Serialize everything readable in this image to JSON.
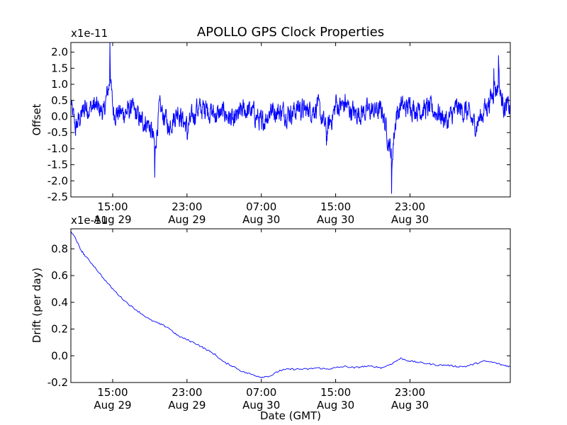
{
  "chart_data": [
    {
      "type": "line",
      "title": "APOLLO GPS Clock Properties",
      "ylabel": "Offset",
      "xlabel": "",
      "y_multiplier": "x1e-11",
      "xlim_hours": [
        10.5,
        57.8
      ],
      "ylim": [
        -2.5,
        2.3
      ],
      "yticks": [
        "2.0",
        "1.5",
        "1.0",
        "0.5",
        "0.0",
        "-0.5",
        "-1.0",
        "-1.5",
        "-2.0",
        "-2.5"
      ],
      "xticks": [
        {
          "time": "15:00",
          "date": "Aug 29",
          "hours": 15
        },
        {
          "time": "23:00",
          "date": "Aug 29",
          "hours": 23
        },
        {
          "time": "07:00",
          "date": "Aug 30",
          "hours": 31
        },
        {
          "time": "15:00",
          "date": "Aug 30",
          "hours": 39
        },
        {
          "time": "23:00",
          "date": "Aug 30",
          "hours": 47
        }
      ],
      "grid": false,
      "color": "#0000ff",
      "series_description_points": [
        [
          10.5,
          0.4
        ],
        [
          11.0,
          -0.6
        ],
        [
          12.0,
          0.5
        ],
        [
          13.0,
          0.6
        ],
        [
          14.0,
          0.3
        ],
        [
          14.7,
          2.3
        ],
        [
          15.0,
          0.3
        ],
        [
          16.0,
          0.2
        ],
        [
          17.0,
          0.4
        ],
        [
          18.0,
          -0.2
        ],
        [
          19.0,
          -0.5
        ],
        [
          19.5,
          -1.9
        ],
        [
          20.0,
          0.5
        ],
        [
          21.0,
          -0.5
        ],
        [
          22.0,
          0.3
        ],
        [
          23.0,
          -0.7
        ],
        [
          24.0,
          0.4
        ],
        [
          25.0,
          0.5
        ],
        [
          26.0,
          0.1
        ],
        [
          27.0,
          0.2
        ],
        [
          28.0,
          -0.3
        ],
        [
          29.0,
          0.4
        ],
        [
          30.0,
          0.3
        ],
        [
          31.0,
          -0.4
        ],
        [
          32.0,
          0.4
        ],
        [
          33.0,
          0.3
        ],
        [
          34.0,
          0.2
        ],
        [
          35.0,
          0.5
        ],
        [
          36.0,
          0.3
        ],
        [
          37.0,
          0.6
        ],
        [
          38.0,
          -0.9
        ],
        [
          39.0,
          0.6
        ],
        [
          40.0,
          0.7
        ],
        [
          41.0,
          0.2
        ],
        [
          42.0,
          0.3
        ],
        [
          43.0,
          0.4
        ],
        [
          44.0,
          0.3
        ],
        [
          45.0,
          -2.4
        ],
        [
          45.5,
          0.1
        ],
        [
          46.0,
          0.5
        ],
        [
          47.0,
          0.6
        ],
        [
          48.0,
          0.4
        ],
        [
          49.0,
          0.5
        ],
        [
          50.0,
          0.2
        ],
        [
          51.0,
          -0.3
        ],
        [
          52.0,
          0.5
        ],
        [
          53.0,
          0.3
        ],
        [
          54.0,
          -0.6
        ],
        [
          55.0,
          0.4
        ],
        [
          56.0,
          1.5
        ],
        [
          56.5,
          1.9
        ],
        [
          57.0,
          0.6
        ],
        [
          57.8,
          0.5
        ]
      ],
      "noise_amplitude": 0.6,
      "n_samples": 1600
    },
    {
      "type": "line",
      "title": "",
      "ylabel": "Drift (per day)",
      "xlabel": "Date (GMT)",
      "y_multiplier": "x1e-11",
      "xlim_hours": [
        10.5,
        57.8
      ],
      "ylim": [
        -0.2,
        0.95
      ],
      "yticks": [
        "0.8",
        "0.6",
        "0.4",
        "0.2",
        "0.0",
        "-0.2"
      ],
      "xticks": [
        {
          "time": "15:00",
          "date": "Aug 29",
          "hours": 15
        },
        {
          "time": "23:00",
          "date": "Aug 29",
          "hours": 23
        },
        {
          "time": "07:00",
          "date": "Aug 30",
          "hours": 31
        },
        {
          "time": "15:00",
          "date": "Aug 30",
          "hours": 39
        },
        {
          "time": "23:00",
          "date": "Aug 30",
          "hours": 47
        }
      ],
      "grid": false,
      "color": "#0000ff",
      "points": [
        [
          10.5,
          0.93
        ],
        [
          11.0,
          0.88
        ],
        [
          11.5,
          0.8
        ],
        [
          12.0,
          0.75
        ],
        [
          13.0,
          0.67
        ],
        [
          14.0,
          0.58
        ],
        [
          15.0,
          0.5
        ],
        [
          16.0,
          0.43
        ],
        [
          17.0,
          0.37
        ],
        [
          18.0,
          0.32
        ],
        [
          19.0,
          0.27
        ],
        [
          20.0,
          0.24
        ],
        [
          21.0,
          0.21
        ],
        [
          22.0,
          0.15
        ],
        [
          23.0,
          0.12
        ],
        [
          24.0,
          0.09
        ],
        [
          25.0,
          0.05
        ],
        [
          26.0,
          0.01
        ],
        [
          27.0,
          -0.05
        ],
        [
          28.0,
          -0.08
        ],
        [
          29.0,
          -0.12
        ],
        [
          30.0,
          -0.14
        ],
        [
          31.0,
          -0.16
        ],
        [
          32.0,
          -0.15
        ],
        [
          33.0,
          -0.11
        ],
        [
          34.0,
          -0.1
        ],
        [
          35.0,
          -0.1
        ],
        [
          36.0,
          -0.1
        ],
        [
          37.0,
          -0.09
        ],
        [
          38.0,
          -0.1
        ],
        [
          39.0,
          -0.09
        ],
        [
          40.0,
          -0.08
        ],
        [
          41.0,
          -0.09
        ],
        [
          42.0,
          -0.08
        ],
        [
          43.0,
          -0.08
        ],
        [
          44.0,
          -0.09
        ],
        [
          45.0,
          -0.06
        ],
        [
          46.0,
          -0.02
        ],
        [
          47.0,
          -0.04
        ],
        [
          48.0,
          -0.05
        ],
        [
          49.0,
          -0.06
        ],
        [
          50.0,
          -0.07
        ],
        [
          51.0,
          -0.07
        ],
        [
          52.0,
          -0.08
        ],
        [
          53.0,
          -0.08
        ],
        [
          54.0,
          -0.06
        ],
        [
          55.0,
          -0.04
        ],
        [
          56.0,
          -0.05
        ],
        [
          57.0,
          -0.07
        ],
        [
          57.8,
          -0.08
        ]
      ]
    }
  ]
}
